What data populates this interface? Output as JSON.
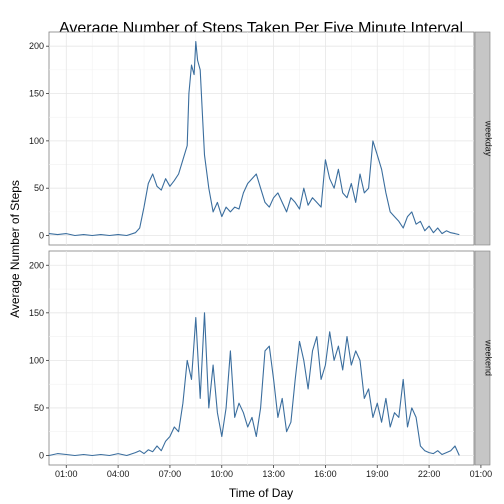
{
  "chart_data": {
    "type": "line",
    "title": "Average Number of Steps Taken Per Five Minute Interval",
    "xlabel": "Time of Day",
    "ylabel": "Average Number of Steps",
    "x_unit": "hours since midnight",
    "xlim": [
      0,
      24.6
    ],
    "ylim": [
      -10,
      215
    ],
    "x_ticks": [
      {
        "value": 1,
        "label": "01:00"
      },
      {
        "value": 4,
        "label": "04:00"
      },
      {
        "value": 7,
        "label": "07:00"
      },
      {
        "value": 10,
        "label": "10:00"
      },
      {
        "value": 13,
        "label": "13:00"
      },
      {
        "value": 16,
        "label": "16:00"
      },
      {
        "value": 19,
        "label": "19:00"
      },
      {
        "value": 22,
        "label": "22:00"
      },
      {
        "value": 25,
        "label": "01:00"
      }
    ],
    "y_ticks": [
      0,
      50,
      100,
      150,
      200
    ],
    "grid": true,
    "line_color": "#3b6e9e",
    "panels": [
      {
        "name": "weekday",
        "x": [
          0,
          0.5,
          1,
          1.5,
          2,
          2.5,
          3,
          3.5,
          4,
          4.5,
          5,
          5.25,
          5.5,
          5.75,
          6,
          6.25,
          6.5,
          6.75,
          7,
          7.25,
          7.5,
          7.75,
          8,
          8.1,
          8.25,
          8.4,
          8.5,
          8.6,
          8.75,
          8.9,
          9,
          9.25,
          9.5,
          9.75,
          10,
          10.25,
          10.5,
          10.75,
          11,
          11.25,
          11.5,
          11.75,
          12,
          12.25,
          12.5,
          12.75,
          13,
          13.25,
          13.5,
          13.75,
          14,
          14.25,
          14.5,
          14.75,
          15,
          15.25,
          15.5,
          15.75,
          16,
          16.25,
          16.5,
          16.75,
          17,
          17.25,
          17.5,
          17.75,
          18,
          18.25,
          18.5,
          18.75,
          19,
          19.25,
          19.5,
          19.75,
          20,
          20.25,
          20.5,
          20.75,
          21,
          21.25,
          21.5,
          21.75,
          22,
          22.25,
          22.5,
          22.75,
          23,
          23.25,
          23.5,
          23.75
        ],
        "y": [
          2,
          1,
          2,
          0,
          1,
          0,
          1,
          0,
          1,
          0,
          3,
          8,
          30,
          55,
          65,
          52,
          48,
          60,
          52,
          58,
          65,
          80,
          95,
          150,
          180,
          170,
          205,
          185,
          175,
          120,
          85,
          50,
          25,
          35,
          20,
          30,
          25,
          30,
          28,
          45,
          55,
          60,
          65,
          50,
          35,
          30,
          40,
          45,
          35,
          25,
          40,
          35,
          28,
          50,
          32,
          40,
          35,
          30,
          80,
          60,
          50,
          70,
          45,
          40,
          55,
          35,
          65,
          45,
          50,
          100,
          85,
          70,
          45,
          25,
          20,
          15,
          8,
          20,
          25,
          12,
          15,
          5,
          10,
          3,
          8,
          2,
          5,
          3,
          2,
          1
        ]
      },
      {
        "name": "weekend",
        "x": [
          0,
          0.5,
          1,
          1.5,
          2,
          2.5,
          3,
          3.5,
          4,
          4.5,
          5,
          5.25,
          5.5,
          5.75,
          6,
          6.25,
          6.5,
          6.75,
          7,
          7.25,
          7.5,
          7.75,
          8,
          8.25,
          8.5,
          8.75,
          9,
          9.25,
          9.5,
          9.75,
          10,
          10.25,
          10.5,
          10.75,
          11,
          11.25,
          11.5,
          11.75,
          12,
          12.25,
          12.5,
          12.75,
          13,
          13.25,
          13.5,
          13.75,
          14,
          14.25,
          14.5,
          14.75,
          15,
          15.25,
          15.5,
          15.75,
          16,
          16.25,
          16.5,
          16.75,
          17,
          17.25,
          17.5,
          17.75,
          18,
          18.25,
          18.5,
          18.75,
          19,
          19.25,
          19.5,
          19.75,
          20,
          20.25,
          20.5,
          20.75,
          21,
          21.25,
          21.5,
          21.75,
          22,
          22.25,
          22.5,
          22.75,
          23,
          23.25,
          23.5,
          23.75
        ],
        "y": [
          0,
          2,
          1,
          0,
          1,
          0,
          1,
          0,
          2,
          0,
          3,
          5,
          2,
          6,
          4,
          10,
          5,
          15,
          20,
          30,
          25,
          55,
          100,
          80,
          145,
          60,
          150,
          50,
          95,
          45,
          20,
          50,
          110,
          40,
          55,
          45,
          30,
          40,
          20,
          50,
          110,
          115,
          80,
          40,
          60,
          25,
          35,
          80,
          120,
          100,
          70,
          110,
          125,
          80,
          95,
          130,
          100,
          115,
          90,
          125,
          95,
          110,
          100,
          60,
          70,
          40,
          55,
          35,
          60,
          30,
          45,
          40,
          80,
          30,
          50,
          40,
          10,
          5,
          3,
          2,
          5,
          1,
          3,
          5,
          10,
          0
        ]
      }
    ]
  }
}
